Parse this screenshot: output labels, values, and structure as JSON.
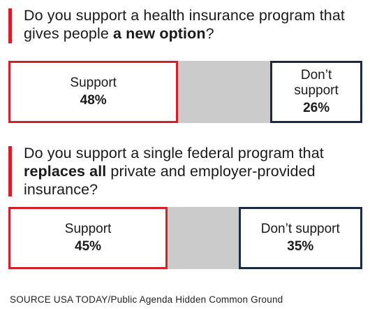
{
  "chart_data": [
    {
      "type": "bar",
      "question_parts": [
        {
          "text": "Do you support a health insurance program that gives people ",
          "bold": false
        },
        {
          "text": "a new option",
          "bold": true
        },
        {
          "text": "?",
          "bold": false
        }
      ],
      "categories": [
        "Support",
        "Don’t support"
      ],
      "values": [
        48,
        26
      ],
      "value_labels": [
        "48%",
        "26%"
      ],
      "ylim": [
        0,
        100
      ]
    },
    {
      "type": "bar",
      "question_parts": [
        {
          "text": "Do you support a single federal program that ",
          "bold": false
        },
        {
          "text": "replaces all",
          "bold": true
        },
        {
          "text": " private and employer-provided insurance?",
          "bold": false
        }
      ],
      "categories": [
        "Support",
        "Don’t support"
      ],
      "values": [
        45,
        35
      ],
      "value_labels": [
        "45%",
        "35%"
      ],
      "ylim": [
        0,
        100
      ]
    }
  ],
  "colors": {
    "accent_red": "#d3212b",
    "navy": "#1c2a44",
    "neutral_gray": "#cbcbcb"
  },
  "source": "SOURCE USA TODAY/Public Agenda Hidden Common Ground"
}
